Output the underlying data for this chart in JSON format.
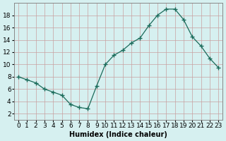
{
  "x": [
    0,
    1,
    2,
    3,
    4,
    5,
    6,
    7,
    8,
    9,
    10,
    11,
    12,
    13,
    14,
    15,
    16,
    17,
    18,
    19,
    20,
    21,
    22,
    23
  ],
  "y": [
    8.0,
    7.5,
    7.0,
    6.0,
    5.5,
    5.0,
    3.5,
    3.0,
    2.8,
    6.5,
    10.0,
    11.5,
    12.3,
    13.5,
    14.3,
    16.3,
    18.0,
    19.0,
    19.0,
    17.3,
    14.5,
    13.0,
    11.0,
    9.5
  ],
  "xlabel": "Humidex (Indice chaleur)",
  "ylabel": "",
  "ylim": [
    1,
    20
  ],
  "xlim": [
    -0.5,
    23.5
  ],
  "yticks": [
    2,
    4,
    6,
    8,
    10,
    12,
    14,
    16,
    18
  ],
  "xticks": [
    0,
    1,
    2,
    3,
    4,
    5,
    6,
    7,
    8,
    9,
    10,
    11,
    12,
    13,
    14,
    15,
    16,
    17,
    18,
    19,
    20,
    21,
    22,
    23
  ],
  "line_color": "#1a6b5a",
  "marker": "+",
  "bg_color": "#d6f0f0",
  "grid_color": "#c8a0a0",
  "label_fontsize": 7,
  "tick_fontsize": 6.5
}
